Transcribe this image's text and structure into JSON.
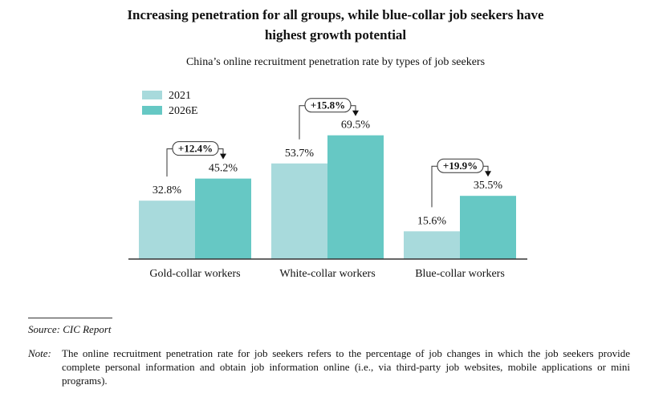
{
  "title_line1": "Increasing penetration for all groups, while blue-collar job seekers have",
  "title_line2": "highest growth potential",
  "subtitle": "China’s online recruitment penetration rate by types of job seekers",
  "source": "Source: CIC Report",
  "note_label": "Note:",
  "note_text": "The online recruitment penetration rate for job seekers refers to the percentage of job changes in which the job seekers provide complete personal information and obtain job information online (i.e., via third-party job websites, mobile applications or mini programs).",
  "colors": {
    "series_2021": "#a8dadc",
    "series_2026E": "#66c8c4",
    "axis": "#333333"
  },
  "chart_data": {
    "type": "bar",
    "title": "China’s online recruitment penetration rate by types of job seekers",
    "categories": [
      "Gold-collar workers",
      "White-collar workers",
      "Blue-collar workers"
    ],
    "series": [
      {
        "name": "2021",
        "values": [
          32.8,
          53.7,
          15.6
        ],
        "labels": [
          "32.8%",
          "53.7%",
          "15.6%"
        ]
      },
      {
        "name": "2026E",
        "values": [
          45.2,
          69.5,
          35.5
        ],
        "labels": [
          "45.2%",
          "69.5%",
          "35.5%"
        ]
      }
    ],
    "annotations": [
      "+12.4%",
      "+15.8%",
      "+19.9%"
    ],
    "legend": "top-left",
    "ylim": [
      0,
      100
    ],
    "grid": false
  }
}
